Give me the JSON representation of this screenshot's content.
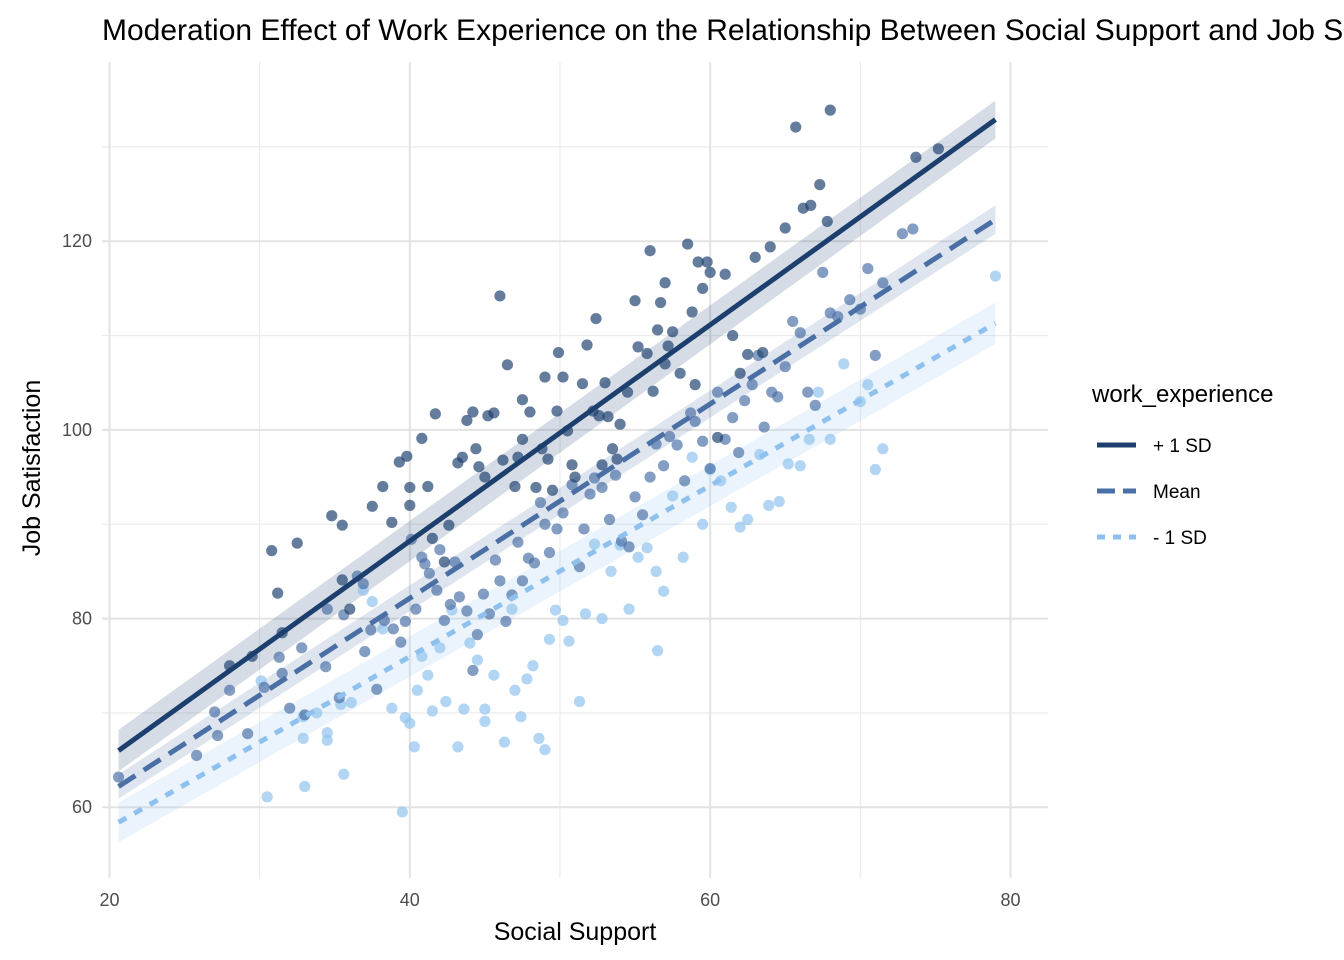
{
  "chart_data": {
    "type": "scatter",
    "title": "Moderation Effect of Work Experience on the Relationship Between Social Support and Job Satisfaction",
    "xlabel": "Social Support",
    "ylabel": "Job Satisfaction",
    "xlim": [
      19.5,
      82.5
    ],
    "ylim": [
      52.5,
      139
    ],
    "x_ticks": [
      20,
      40,
      60,
      80
    ],
    "y_ticks": [
      60,
      80,
      100,
      120
    ],
    "grid": true,
    "legend": {
      "title": "work_experience",
      "position": "right",
      "entries": [
        "+ 1 SD",
        "Mean",
        "- 1 SD"
      ]
    },
    "series": [
      {
        "name": "+ 1 SD",
        "color": "#1c3f6e",
        "line_style": "solid",
        "fit": {
          "x": [
            20.6,
            79.0
          ],
          "y": [
            66.0,
            132.9
          ]
        },
        "band_halfwidth": [
          2.2,
          2.0
        ],
        "points": [
          [
            28.0,
            75.0
          ],
          [
            29.5,
            76.0
          ],
          [
            30.8,
            87.2
          ],
          [
            31.2,
            82.7
          ],
          [
            31.5,
            78.5
          ],
          [
            32.5,
            88.0
          ],
          [
            34.8,
            90.9
          ],
          [
            35.5,
            89.9
          ],
          [
            35.5,
            84.1
          ],
          [
            36.0,
            81.0
          ],
          [
            37.5,
            91.9
          ],
          [
            38.2,
            94.0
          ],
          [
            38.8,
            90.2
          ],
          [
            39.3,
            96.6
          ],
          [
            39.8,
            97.2
          ],
          [
            40.0,
            93.9
          ],
          [
            40.0,
            92.0
          ],
          [
            40.8,
            99.1
          ],
          [
            41.2,
            94.0
          ],
          [
            41.5,
            88.5
          ],
          [
            41.7,
            101.7
          ],
          [
            42.3,
            86.0
          ],
          [
            42.6,
            89.9
          ],
          [
            43.2,
            96.5
          ],
          [
            43.5,
            97.1
          ],
          [
            43.8,
            101.0
          ],
          [
            44.2,
            101.9
          ],
          [
            44.4,
            98.0
          ],
          [
            44.6,
            96.1
          ],
          [
            45.0,
            95.0
          ],
          [
            45.2,
            101.5
          ],
          [
            45.6,
            101.8
          ],
          [
            46.0,
            114.2
          ],
          [
            46.2,
            96.8
          ],
          [
            46.5,
            106.9
          ],
          [
            47.0,
            94.0
          ],
          [
            47.2,
            97.1
          ],
          [
            47.5,
            99.0
          ],
          [
            47.5,
            103.2
          ],
          [
            48.0,
            101.9
          ],
          [
            48.4,
            93.9
          ],
          [
            48.8,
            98.0
          ],
          [
            49.0,
            105.6
          ],
          [
            49.2,
            96.9
          ],
          [
            49.5,
            93.6
          ],
          [
            49.8,
            102.0
          ],
          [
            49.9,
            108.2
          ],
          [
            50.2,
            105.6
          ],
          [
            50.5,
            99.9
          ],
          [
            50.8,
            96.3
          ],
          [
            51.0,
            95.0
          ],
          [
            51.5,
            104.9
          ],
          [
            51.8,
            109.0
          ],
          [
            52.2,
            102.0
          ],
          [
            52.4,
            111.8
          ],
          [
            52.6,
            101.5
          ],
          [
            52.8,
            96.3
          ],
          [
            53.0,
            105.0
          ],
          [
            53.2,
            101.4
          ],
          [
            53.5,
            98.0
          ],
          [
            53.8,
            96.9
          ],
          [
            54.0,
            100.6
          ],
          [
            54.5,
            104.0
          ],
          [
            55.0,
            113.7
          ],
          [
            55.2,
            108.8
          ],
          [
            55.8,
            108.1
          ],
          [
            56.0,
            119.0
          ],
          [
            56.2,
            104.1
          ],
          [
            56.5,
            110.6
          ],
          [
            56.7,
            113.5
          ],
          [
            57.0,
            115.6
          ],
          [
            57.0,
            107.0
          ],
          [
            57.2,
            108.9
          ],
          [
            57.5,
            110.4
          ],
          [
            58.0,
            106.0
          ],
          [
            58.5,
            119.7
          ],
          [
            58.8,
            112.5
          ],
          [
            59.0,
            104.8
          ],
          [
            59.2,
            117.8
          ],
          [
            59.5,
            115.0
          ],
          [
            59.8,
            117.8
          ],
          [
            60.0,
            116.7
          ],
          [
            60.5,
            99.2
          ],
          [
            61.0,
            116.5
          ],
          [
            61.5,
            110.0
          ],
          [
            62.0,
            106.0
          ],
          [
            62.5,
            108.0
          ],
          [
            63.0,
            118.3
          ],
          [
            63.5,
            108.2
          ],
          [
            64.0,
            119.4
          ],
          [
            65.0,
            121.4
          ],
          [
            65.7,
            132.1
          ],
          [
            66.2,
            123.5
          ],
          [
            66.7,
            123.8
          ],
          [
            67.3,
            126.0
          ],
          [
            67.8,
            122.1
          ],
          [
            68.0,
            133.9
          ],
          [
            73.7,
            128.9
          ],
          [
            75.2,
            129.8
          ]
        ]
      },
      {
        "name": "Mean",
        "color": "#4a6fa5",
        "line_style": "dashed",
        "fit": {
          "x": [
            20.6,
            79.0
          ],
          "y": [
            62.2,
            122.3
          ]
        },
        "band_halfwidth": [
          1.3,
          1.5
        ],
        "points": [
          [
            20.6,
            63.2
          ],
          [
            25.8,
            65.5
          ],
          [
            27.0,
            70.1
          ],
          [
            27.2,
            67.6
          ],
          [
            28.0,
            72.4
          ],
          [
            29.2,
            67.8
          ],
          [
            30.3,
            72.7
          ],
          [
            31.3,
            75.9
          ],
          [
            31.5,
            74.2
          ],
          [
            32.0,
            70.5
          ],
          [
            32.8,
            76.9
          ],
          [
            33.0,
            69.8
          ],
          [
            34.4,
            74.9
          ],
          [
            34.5,
            81.0
          ],
          [
            35.3,
            71.6
          ],
          [
            35.6,
            80.4
          ],
          [
            36.5,
            84.5
          ],
          [
            36.9,
            83.7
          ],
          [
            37.0,
            76.5
          ],
          [
            37.4,
            78.8
          ],
          [
            37.8,
            72.5
          ],
          [
            38.3,
            79.8
          ],
          [
            38.9,
            78.9
          ],
          [
            39.4,
            77.5
          ],
          [
            39.7,
            79.7
          ],
          [
            40.1,
            88.4
          ],
          [
            40.4,
            81.0
          ],
          [
            40.8,
            86.5
          ],
          [
            41.0,
            85.8
          ],
          [
            41.3,
            84.8
          ],
          [
            41.8,
            83.0
          ],
          [
            42.0,
            87.3
          ],
          [
            42.3,
            79.8
          ],
          [
            42.7,
            81.5
          ],
          [
            43.0,
            86.0
          ],
          [
            43.3,
            82.3
          ],
          [
            43.8,
            80.8
          ],
          [
            44.2,
            74.5
          ],
          [
            44.5,
            78.3
          ],
          [
            44.9,
            82.6
          ],
          [
            45.3,
            80.5
          ],
          [
            45.7,
            86.2
          ],
          [
            46.0,
            84.0
          ],
          [
            46.4,
            79.7
          ],
          [
            46.8,
            82.5
          ],
          [
            47.2,
            88.1
          ],
          [
            47.5,
            84.0
          ],
          [
            47.9,
            86.4
          ],
          [
            48.3,
            85.9
          ],
          [
            48.7,
            92.3
          ],
          [
            49.0,
            90.0
          ],
          [
            49.3,
            87.0
          ],
          [
            49.8,
            89.5
          ],
          [
            50.2,
            91.2
          ],
          [
            50.8,
            94.2
          ],
          [
            51.3,
            85.5
          ],
          [
            51.6,
            89.5
          ],
          [
            52.0,
            93.2
          ],
          [
            52.3,
            94.9
          ],
          [
            52.8,
            93.9
          ],
          [
            53.3,
            90.5
          ],
          [
            53.7,
            95.2
          ],
          [
            54.1,
            88.2
          ],
          [
            54.6,
            87.6
          ],
          [
            55.0,
            92.9
          ],
          [
            55.5,
            91.0
          ],
          [
            56.0,
            95.0
          ],
          [
            56.4,
            98.5
          ],
          [
            56.9,
            96.2
          ],
          [
            57.3,
            99.3
          ],
          [
            57.8,
            98.4
          ],
          [
            58.3,
            94.6
          ],
          [
            58.7,
            101.8
          ],
          [
            59.0,
            100.9
          ],
          [
            59.5,
            98.8
          ],
          [
            60.0,
            95.9
          ],
          [
            60.5,
            104.0
          ],
          [
            61.0,
            99.0
          ],
          [
            61.5,
            101.3
          ],
          [
            61.9,
            97.6
          ],
          [
            62.3,
            103.1
          ],
          [
            62.8,
            104.8
          ],
          [
            63.2,
            107.9
          ],
          [
            63.6,
            100.3
          ],
          [
            64.1,
            104.0
          ],
          [
            64.5,
            103.5
          ],
          [
            65.0,
            106.7
          ],
          [
            65.5,
            111.5
          ],
          [
            66.0,
            110.3
          ],
          [
            66.5,
            104.0
          ],
          [
            67.0,
            102.6
          ],
          [
            67.5,
            116.7
          ],
          [
            68.0,
            112.4
          ],
          [
            68.5,
            112.0
          ],
          [
            69.3,
            113.8
          ],
          [
            70.0,
            112.8
          ],
          [
            70.5,
            117.1
          ],
          [
            71.0,
            107.9
          ],
          [
            71.5,
            115.6
          ],
          [
            72.8,
            120.8
          ],
          [
            73.5,
            121.3
          ]
        ]
      },
      {
        "name": "- 1 SD",
        "color": "#8ec1ee",
        "line_style": "dotted",
        "fit": {
          "x": [
            20.6,
            79.0
          ],
          "y": [
            58.4,
            111.3
          ]
        },
        "band_halfwidth": [
          2.1,
          2.2
        ],
        "points": [
          [
            30.1,
            73.4
          ],
          [
            30.5,
            61.1
          ],
          [
            32.9,
            69.6
          ],
          [
            32.9,
            67.3
          ],
          [
            33.0,
            62.2
          ],
          [
            33.8,
            70.0
          ],
          [
            34.5,
            67.9
          ],
          [
            34.5,
            67.1
          ],
          [
            35.4,
            70.9
          ],
          [
            35.6,
            63.5
          ],
          [
            36.1,
            71.1
          ],
          [
            36.9,
            83.0
          ],
          [
            37.5,
            81.8
          ],
          [
            38.2,
            78.9
          ],
          [
            38.8,
            70.5
          ],
          [
            39.5,
            59.5
          ],
          [
            39.7,
            69.5
          ],
          [
            40.0,
            68.9
          ],
          [
            40.3,
            66.4
          ],
          [
            40.5,
            72.4
          ],
          [
            40.8,
            76.0
          ],
          [
            41.2,
            74.0
          ],
          [
            41.5,
            70.2
          ],
          [
            42.0,
            76.9
          ],
          [
            42.4,
            71.2
          ],
          [
            42.8,
            80.9
          ],
          [
            43.2,
            66.4
          ],
          [
            43.6,
            70.4
          ],
          [
            44.0,
            77.4
          ],
          [
            44.5,
            75.6
          ],
          [
            45.0,
            70.4
          ],
          [
            45.0,
            69.1
          ],
          [
            45.6,
            74.0
          ],
          [
            46.3,
            66.9
          ],
          [
            46.8,
            81.0
          ],
          [
            47.0,
            72.4
          ],
          [
            47.4,
            69.6
          ],
          [
            47.8,
            73.6
          ],
          [
            48.2,
            75.0
          ],
          [
            48.6,
            67.3
          ],
          [
            49.0,
            66.1
          ],
          [
            49.3,
            77.8
          ],
          [
            49.7,
            80.9
          ],
          [
            50.2,
            79.8
          ],
          [
            50.6,
            77.6
          ],
          [
            51.3,
            71.2
          ],
          [
            51.7,
            80.5
          ],
          [
            52.3,
            87.9
          ],
          [
            52.8,
            80.0
          ],
          [
            53.4,
            85.0
          ],
          [
            54.0,
            87.8
          ],
          [
            54.6,
            81.0
          ],
          [
            55.2,
            86.5
          ],
          [
            55.8,
            87.5
          ],
          [
            56.4,
            85.0
          ],
          [
            56.5,
            76.6
          ],
          [
            56.9,
            82.9
          ],
          [
            57.5,
            93.0
          ],
          [
            58.2,
            86.5
          ],
          [
            58.8,
            97.1
          ],
          [
            59.5,
            90.0
          ],
          [
            60.0,
            95.8
          ],
          [
            60.7,
            94.6
          ],
          [
            61.4,
            91.8
          ],
          [
            62.0,
            89.7
          ],
          [
            62.5,
            90.5
          ],
          [
            63.3,
            97.4
          ],
          [
            63.9,
            92.0
          ],
          [
            64.6,
            92.4
          ],
          [
            65.2,
            96.4
          ],
          [
            66.0,
            96.2
          ],
          [
            66.6,
            99.0
          ],
          [
            67.2,
            104.0
          ],
          [
            68.0,
            99.0
          ],
          [
            68.9,
            107.0
          ],
          [
            70.0,
            103.0
          ],
          [
            70.5,
            104.8
          ],
          [
            71.0,
            95.8
          ],
          [
            71.5,
            98.0
          ],
          [
            79.0,
            116.3
          ]
        ]
      }
    ]
  }
}
